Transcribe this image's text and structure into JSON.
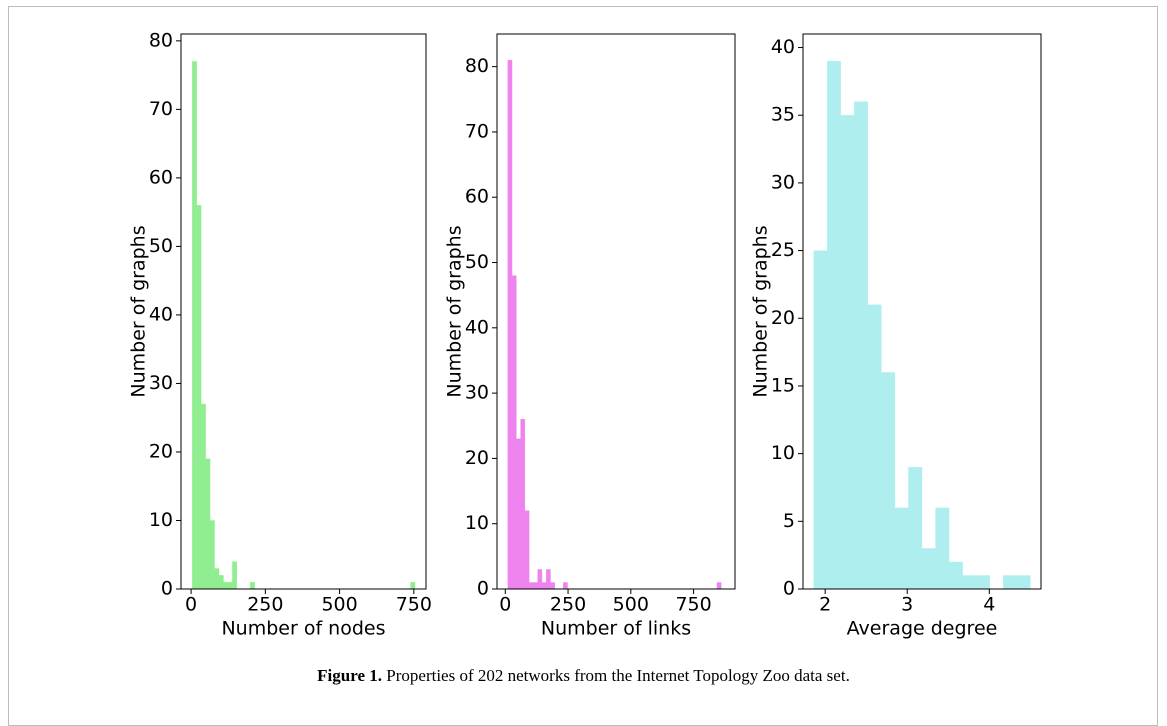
{
  "chart_data": [
    {
      "type": "histogram",
      "xlabel": "Number of nodes",
      "ylabel": "Number of graphs",
      "color": "#90ee90",
      "bins": [
        4,
        19,
        34,
        49,
        64,
        79,
        94,
        109,
        124,
        139,
        154,
        169,
        184,
        199,
        214,
        229,
        244,
        259,
        274,
        289,
        304,
        319,
        334,
        349,
        364,
        379,
        394,
        409,
        424,
        439,
        454,
        469,
        484,
        499,
        514,
        529,
        544,
        559,
        574,
        589,
        604,
        619,
        634,
        649,
        664,
        679,
        694,
        709,
        724,
        739,
        754
      ],
      "counts": [
        77,
        56,
        27,
        19,
        10,
        3,
        2,
        1,
        1,
        4,
        0,
        0,
        0,
        1,
        0,
        0,
        0,
        0,
        0,
        0,
        0,
        0,
        0,
        0,
        0,
        0,
        0,
        0,
        0,
        0,
        0,
        0,
        0,
        0,
        0,
        0,
        0,
        0,
        0,
        0,
        0,
        0,
        0,
        0,
        0,
        0,
        0,
        0,
        0,
        1
      ],
      "xlim": [
        -34,
        791
      ],
      "xticks": [
        0,
        250,
        500,
        750
      ],
      "ylim": [
        0,
        81
      ],
      "yticks": [
        0,
        10,
        20,
        30,
        40,
        50,
        60,
        70,
        80
      ]
    },
    {
      "type": "histogram",
      "xlabel": "Number of links",
      "ylabel": "Number of graphs",
      "color": "#ee82ee",
      "bins": [
        10,
        27,
        44,
        61,
        78,
        95,
        112,
        129,
        146,
        163,
        180,
        197,
        214,
        231,
        248,
        265,
        282,
        299,
        316,
        333,
        350,
        367,
        384,
        401,
        418,
        435,
        452,
        469,
        486,
        503,
        520,
        537,
        554,
        571,
        588,
        605,
        622,
        639,
        656,
        673,
        690,
        707,
        724,
        741,
        758,
        775,
        792,
        809,
        826,
        843,
        860
      ],
      "counts": [
        81,
        48,
        23,
        26,
        12,
        1,
        1,
        3,
        1,
        3,
        1,
        0,
        0,
        1,
        0,
        0,
        0,
        0,
        0,
        0,
        0,
        0,
        0,
        0,
        0,
        0,
        0,
        0,
        0,
        0,
        0,
        0,
        0,
        0,
        0,
        0,
        0,
        0,
        0,
        0,
        0,
        0,
        0,
        0,
        0,
        0,
        0,
        0,
        0,
        1
      ],
      "xlim": [
        -33,
        915
      ],
      "xticks": [
        0,
        250,
        500,
        750
      ],
      "ylim": [
        0,
        85
      ],
      "yticks": [
        0,
        10,
        20,
        30,
        40,
        50,
        60,
        70,
        80
      ]
    },
    {
      "type": "histogram",
      "xlabel": "Average degree",
      "ylabel": "Number of graphs",
      "color": "#afeeee",
      "bins": [
        1.86,
        2.025,
        2.19,
        2.355,
        2.52,
        2.685,
        2.85,
        3.015,
        3.18,
        3.345,
        3.51,
        3.675,
        3.84,
        4.005,
        4.17,
        4.335,
        4.5
      ],
      "counts": [
        25,
        39,
        35,
        36,
        21,
        16,
        6,
        9,
        3,
        6,
        2,
        1,
        1,
        0,
        1,
        1
      ],
      "xlim": [
        1.73,
        4.63
      ],
      "xticks": [
        2,
        3,
        4
      ],
      "ylim": [
        0,
        41
      ],
      "yticks": [
        0,
        5,
        10,
        15,
        20,
        25,
        30,
        35,
        40
      ]
    }
  ],
  "caption": {
    "label": "Figure 1.",
    "text": "Properties of 202 networks from the Internet Topology Zoo data set."
  }
}
